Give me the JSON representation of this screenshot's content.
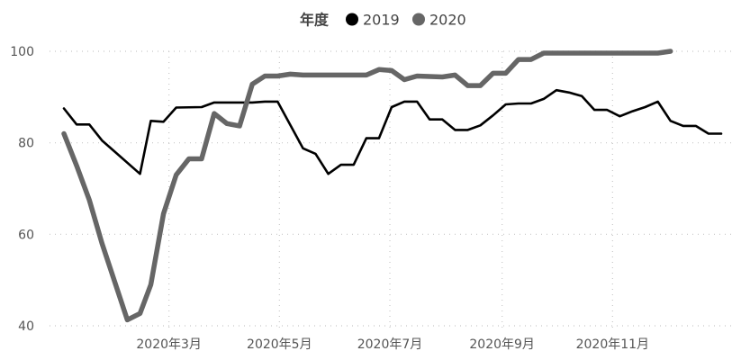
{
  "chart_data": {
    "type": "line",
    "legend": {
      "title": "年度",
      "placement": "top-center"
    },
    "x_axis": {
      "type": "date",
      "range": [
        "2020-01-01",
        "2020-12-31"
      ],
      "tick_labels": [
        {
          "date": "2020-03-01",
          "label": "2020年3月"
        },
        {
          "date": "2020-05-01",
          "label": "2020年5月"
        },
        {
          "date": "2020-07-01",
          "label": "2020年7月"
        },
        {
          "date": "2020-09-01",
          "label": "2020年9月"
        },
        {
          "date": "2020-11-01",
          "label": "2020年11月"
        }
      ]
    },
    "y_axis": {
      "range": [
        40,
        100
      ],
      "tick_labels": [
        "40",
        "60",
        "80",
        "100"
      ],
      "ticks": [
        40,
        60,
        80,
        100
      ]
    },
    "grid": true,
    "series": [
      {
        "name": "2019",
        "color": "#000000",
        "points": [
          [
            "2020-01-03",
            87.5
          ],
          [
            "2020-01-10",
            84
          ],
          [
            "2020-01-17",
            84
          ],
          [
            "2020-01-24",
            80.5
          ],
          [
            "2020-02-14",
            73.2
          ],
          [
            "2020-02-20",
            84.8
          ],
          [
            "2020-02-27",
            84.6
          ],
          [
            "2020-03-05",
            87.7
          ],
          [
            "2020-03-19",
            87.8
          ],
          [
            "2020-03-26",
            88.8
          ],
          [
            "2020-04-16",
            88.8
          ],
          [
            "2020-04-23",
            89
          ],
          [
            "2020-04-30",
            89
          ],
          [
            "2020-05-14",
            78.8
          ],
          [
            "2020-05-21",
            77.6
          ],
          [
            "2020-05-28",
            73.2
          ],
          [
            "2020-06-04",
            75.2
          ],
          [
            "2020-06-11",
            75.2
          ],
          [
            "2020-06-18",
            81
          ],
          [
            "2020-06-25",
            81
          ],
          [
            "2020-07-02",
            87.8
          ],
          [
            "2020-07-09",
            89
          ],
          [
            "2020-07-16",
            89
          ],
          [
            "2020-07-23",
            85.1
          ],
          [
            "2020-07-30",
            85.1
          ],
          [
            "2020-08-06",
            82.8
          ],
          [
            "2020-08-13",
            82.8
          ],
          [
            "2020-08-20",
            83.8
          ],
          [
            "2020-08-27",
            86
          ],
          [
            "2020-09-03",
            88.4
          ],
          [
            "2020-09-10",
            88.6
          ],
          [
            "2020-09-17",
            88.6
          ],
          [
            "2020-09-24",
            89.6
          ],
          [
            "2020-10-01",
            91.5
          ],
          [
            "2020-10-08",
            91
          ],
          [
            "2020-10-15",
            90.2
          ],
          [
            "2020-10-22",
            87.2
          ],
          [
            "2020-10-29",
            87.2
          ],
          [
            "2020-11-05",
            85.8
          ],
          [
            "2020-11-12",
            86.9
          ],
          [
            "2020-11-19",
            87.8
          ],
          [
            "2020-11-26",
            89
          ],
          [
            "2020-12-03",
            84.8
          ],
          [
            "2020-12-10",
            83.7
          ],
          [
            "2020-12-17",
            83.7
          ],
          [
            "2020-12-24",
            82
          ],
          [
            "2020-12-31",
            82
          ]
        ]
      },
      {
        "name": "2020",
        "color": "#666666",
        "points": [
          [
            "2020-01-03",
            82
          ],
          [
            "2020-01-10",
            75
          ],
          [
            "2020-01-17",
            67.5
          ],
          [
            "2020-01-24",
            58
          ],
          [
            "2020-02-07",
            41.3
          ],
          [
            "2020-02-14",
            42.7
          ],
          [
            "2020-02-20",
            49
          ],
          [
            "2020-02-27",
            64.5
          ],
          [
            "2020-03-05",
            73
          ],
          [
            "2020-03-12",
            76.5
          ],
          [
            "2020-03-19",
            76.5
          ],
          [
            "2020-03-26",
            86.4
          ],
          [
            "2020-04-02",
            84.2
          ],
          [
            "2020-04-09",
            83.7
          ],
          [
            "2020-04-16",
            92.8
          ],
          [
            "2020-04-23",
            94.6
          ],
          [
            "2020-04-30",
            94.6
          ],
          [
            "2020-05-07",
            95
          ],
          [
            "2020-05-14",
            94.8
          ],
          [
            "2020-06-18",
            94.8
          ],
          [
            "2020-06-25",
            96
          ],
          [
            "2020-07-02",
            95.8
          ],
          [
            "2020-07-09",
            93.8
          ],
          [
            "2020-07-16",
            94.6
          ],
          [
            "2020-07-30",
            94.4
          ],
          [
            "2020-08-06",
            94.8
          ],
          [
            "2020-08-13",
            92.5
          ],
          [
            "2020-08-20",
            92.5
          ],
          [
            "2020-08-27",
            95.2
          ],
          [
            "2020-09-03",
            95.2
          ],
          [
            "2020-09-10",
            98.2
          ],
          [
            "2020-09-17",
            98.2
          ],
          [
            "2020-09-24",
            99.6
          ],
          [
            "2020-11-26",
            99.6
          ],
          [
            "2020-12-03",
            100
          ]
        ]
      }
    ]
  }
}
